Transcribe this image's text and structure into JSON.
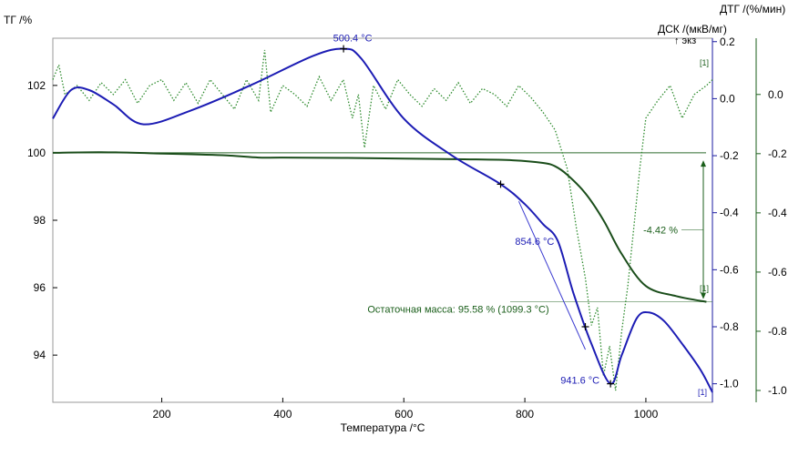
{
  "chart_data": {
    "type": "line",
    "title": "",
    "xlabel": "Температура /°C",
    "xlim": [
      20,
      1110
    ],
    "x_ticks": [
      200,
      400,
      600,
      800,
      1000
    ],
    "axes": {
      "tg": {
        "label": "ТГ /%",
        "ylim": [
          92.6,
          103.4
        ],
        "ticks": [
          94,
          96,
          98,
          100,
          102
        ],
        "color": "#000000"
      },
      "dsc": {
        "label": "ДСК /(мкВ/мг)",
        "exo_label": "↑ экз",
        "ylim": [
          -1.065,
          0.212
        ],
        "ticks": [
          -1.0,
          -0.8,
          -0.6,
          -0.4,
          -0.2,
          0.0,
          0.2
        ],
        "color": "#1a1aa0"
      },
      "dtg": {
        "label": "ДТГ /(%/мин)",
        "ylim": [
          -1.04,
          0.19
        ],
        "ticks": [
          -1.0,
          -0.8,
          -0.6,
          -0.4,
          -0.2,
          0.0
        ],
        "color": "#1a5e1a"
      }
    },
    "series": [
      {
        "name": "ТГ",
        "axis": "tg",
        "color": "#1a4d1a",
        "style": "solid",
        "x": [
          20,
          100,
          200,
          300,
          360,
          400,
          500,
          600,
          700,
          780,
          830,
          850,
          870,
          900,
          930,
          960,
          1000,
          1050,
          1100
        ],
        "y": [
          100.0,
          100.02,
          99.98,
          99.93,
          99.86,
          99.86,
          99.85,
          99.83,
          99.81,
          99.78,
          99.7,
          99.6,
          99.35,
          98.8,
          98.0,
          97.0,
          96.05,
          95.75,
          95.58
        ]
      },
      {
        "name": "ДСК",
        "axis": "dsc",
        "color": "#1c1cb4",
        "style": "solid",
        "x": [
          20,
          50,
          80,
          120,
          170,
          250,
          350,
          450,
          500.4,
          530,
          600,
          680,
          760,
          800,
          830,
          854.6,
          880,
          910,
          941.6,
          960,
          985,
          1005,
          1030,
          1060,
          1090,
          1110
        ],
        "y": [
          -0.07,
          0.03,
          0.03,
          -0.02,
          -0.09,
          -0.04,
          0.05,
          0.15,
          0.175,
          0.14,
          -0.07,
          -0.2,
          -0.3,
          -0.37,
          -0.44,
          -0.5,
          -0.68,
          -0.86,
          -1.0,
          -0.9,
          -0.77,
          -0.75,
          -0.78,
          -0.86,
          -0.95,
          -1.03
        ]
      },
      {
        "name": "ДТГ",
        "axis": "dtg",
        "color": "#2e8b2e",
        "style": "dotted",
        "x": [
          20,
          30,
          40,
          60,
          80,
          100,
          120,
          140,
          160,
          180,
          200,
          220,
          240,
          260,
          280,
          300,
          320,
          340,
          360,
          370,
          380,
          400,
          420,
          440,
          460,
          480,
          500,
          515,
          525,
          535,
          550,
          570,
          590,
          610,
          630,
          650,
          670,
          690,
          710,
          730,
          750,
          770,
          790,
          810,
          830,
          850,
          870,
          885,
          900,
          910,
          920,
          930,
          940,
          950,
          960,
          970,
          980,
          990,
          1000,
          1020,
          1040,
          1060,
          1080,
          1100,
          1110
        ],
        "y": [
          0.05,
          0.1,
          0.0,
          0.03,
          -0.02,
          0.04,
          0.0,
          0.05,
          -0.03,
          0.03,
          0.05,
          -0.02,
          0.04,
          -0.03,
          0.05,
          0.0,
          -0.05,
          0.05,
          -0.02,
          0.15,
          -0.06,
          0.03,
          0.0,
          -0.04,
          0.06,
          -0.02,
          0.05,
          -0.08,
          0.0,
          -0.18,
          0.03,
          -0.05,
          0.05,
          0.0,
          -0.04,
          0.02,
          -0.02,
          0.04,
          -0.03,
          0.02,
          0.0,
          -0.04,
          0.03,
          -0.01,
          -0.06,
          -0.12,
          -0.25,
          -0.45,
          -0.62,
          -0.78,
          -0.72,
          -0.95,
          -0.85,
          -1.0,
          -0.8,
          -0.65,
          -0.45,
          -0.25,
          -0.08,
          -0.02,
          0.03,
          -0.08,
          0.0,
          0.03,
          0.05
        ]
      }
    ],
    "annotations": {
      "dsc_peak_1": "500.4 °C",
      "dsc_onset": "854.6 °C",
      "dsc_peak_2": "941.6 °C",
      "mass_change": "-4.42 %",
      "residual_mass": "Остаточная масса: 95.58 % (1099.3 °C)",
      "curve_marker": "[1]"
    },
    "grid": false,
    "legend": "none"
  }
}
